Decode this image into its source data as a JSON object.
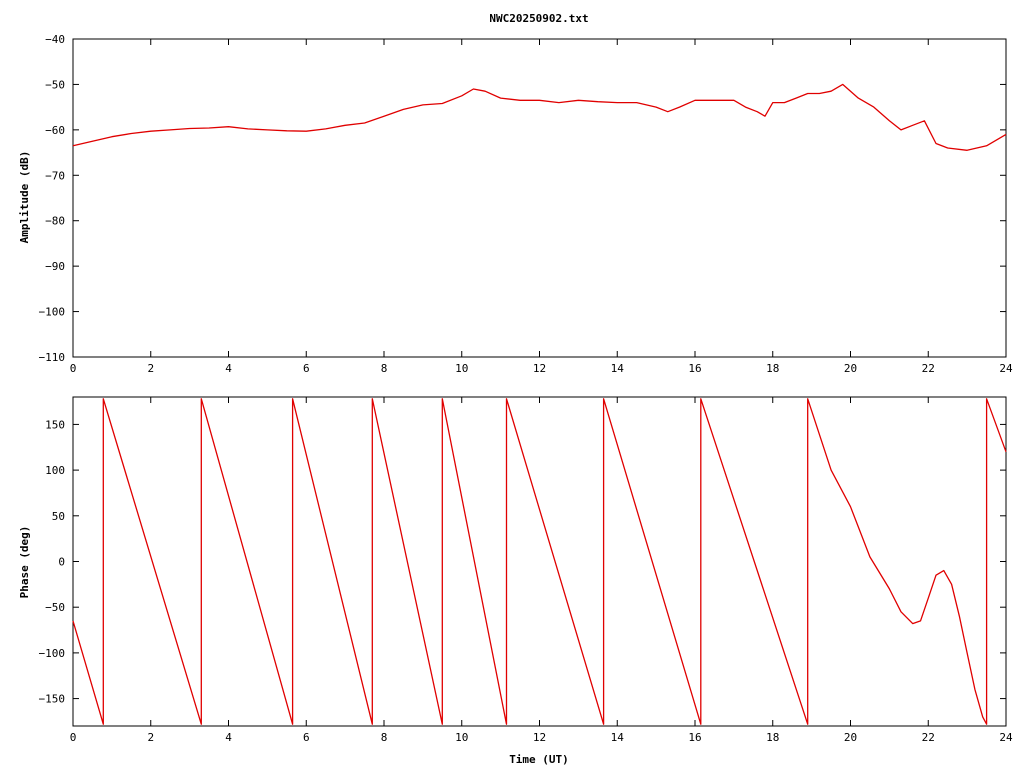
{
  "page_title": "NWC20250902.txt",
  "chart_data": [
    {
      "type": "line",
      "title": "NWC20250902.txt",
      "xlabel": "",
      "ylabel": "Amplitude (dB)",
      "xlim": [
        0,
        24
      ],
      "ylim": [
        -110,
        -40
      ],
      "xticks": [
        0,
        2,
        4,
        6,
        8,
        10,
        12,
        14,
        16,
        18,
        20,
        22,
        24
      ],
      "yticks": [
        -110,
        -100,
        -90,
        -80,
        -70,
        -60,
        -50,
        -40
      ],
      "grid": false,
      "line_color": "#e00000",
      "series": [
        {
          "x": [
            0,
            0.5,
            1,
            1.5,
            2,
            2.5,
            3,
            3.5,
            4,
            4.5,
            5,
            5.5,
            6,
            6.5,
            7,
            7.5,
            8,
            8.5,
            9,
            9.5,
            10,
            10.3,
            10.6,
            11,
            11.5,
            12,
            12.5,
            13,
            13.5,
            14,
            14.5,
            15,
            15.3,
            15.6,
            16,
            16.5,
            17,
            17.3,
            17.6,
            17.8,
            18,
            18.3,
            18.6,
            18.9,
            19.2,
            19.5,
            19.8,
            20.2,
            20.6,
            21,
            21.3,
            21.6,
            21.9,
            22.2,
            22.5,
            23,
            23.5,
            24
          ],
          "y": [
            -63.5,
            -62.5,
            -61.5,
            -60.8,
            -60.3,
            -60,
            -59.7,
            -59.6,
            -59.3,
            -59.8,
            -60,
            -60.2,
            -60.3,
            -59.8,
            -59,
            -58.5,
            -57,
            -55.5,
            -54.5,
            -54.2,
            -52.5,
            -51,
            -51.5,
            -53,
            -53.5,
            -53.5,
            -54,
            -53.5,
            -53.8,
            -54,
            -54,
            -55,
            -56,
            -55,
            -53.5,
            -53.5,
            -53.5,
            -55,
            -56,
            -57,
            -54,
            -54,
            -53,
            -52,
            -52,
            -51.5,
            -50,
            -53,
            -55,
            -58,
            -60,
            -59,
            -58,
            -63,
            -64,
            -64.5,
            -63.5,
            -61
          ]
        }
      ]
    },
    {
      "type": "line",
      "title": "",
      "xlabel": "Time (UT)",
      "ylabel": "Phase (deg)",
      "xlim": [
        0,
        24
      ],
      "ylim": [
        -180,
        180
      ],
      "xticks": [
        0,
        2,
        4,
        6,
        8,
        10,
        12,
        14,
        16,
        18,
        20,
        22,
        24
      ],
      "yticks": [
        -150,
        -100,
        -50,
        0,
        50,
        100,
        150
      ],
      "grid": false,
      "line_color": "#e00000",
      "series": [
        {
          "x": [
            0,
            0.78,
            0.78,
            3.3,
            3.3,
            5.65,
            5.65,
            7.7,
            7.7,
            9.5,
            9.5,
            11.15,
            11.15,
            13.65,
            13.65,
            16.15,
            16.15,
            18.9,
            18.9,
            19.5,
            20,
            20.5,
            21,
            21.3,
            21.6,
            21.8,
            22,
            22.2,
            22.4,
            22.6,
            22.8,
            23,
            23.2,
            23.4,
            23.5,
            23.5,
            24
          ],
          "y": [
            -65,
            -178,
            178,
            -178,
            178,
            -178,
            178,
            -178,
            178,
            -178,
            178,
            -178,
            178,
            -178,
            178,
            -178,
            178,
            -178,
            178,
            100,
            60,
            5,
            -30,
            -55,
            -68,
            -65,
            -40,
            -15,
            -10,
            -25,
            -60,
            -100,
            -140,
            -170,
            -178,
            178,
            120
          ]
        }
      ]
    }
  ]
}
